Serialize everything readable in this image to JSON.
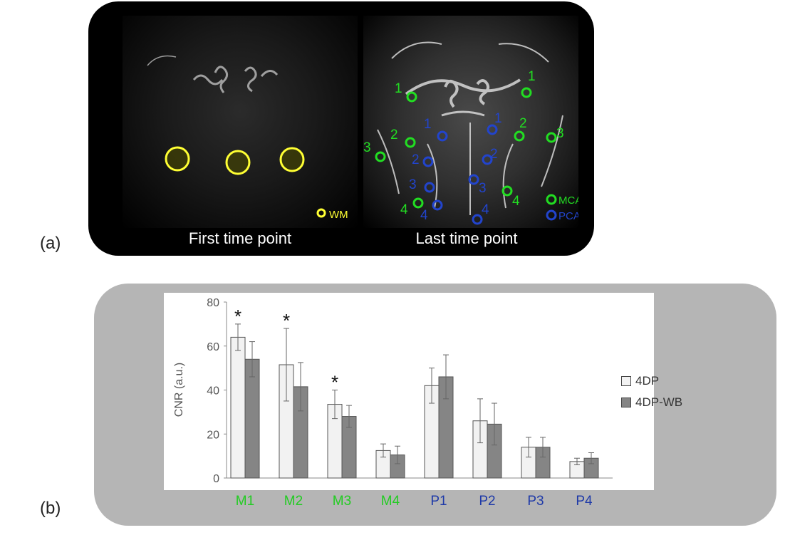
{
  "panel_a": {
    "label": "(a)",
    "left_caption": "First time point",
    "right_caption": "Last time point",
    "wm_legend": "WM",
    "mca_legend": "MCA",
    "pca_legend": "PCA",
    "colors": {
      "wm": "#ffff33",
      "mca": "#22dd22",
      "pca": "#2244cc"
    },
    "mca_roi_labels": [
      "1",
      "2",
      "3",
      "4",
      "1",
      "2",
      "3",
      "4"
    ],
    "pca_roi_labels": [
      "1",
      "2",
      "3",
      "4",
      "1",
      "2",
      "3",
      "4"
    ]
  },
  "panel_b": {
    "label": "(b)"
  },
  "chart_data": {
    "type": "bar",
    "categories": [
      "M1",
      "M2",
      "M3",
      "M4",
      "P1",
      "P2",
      "P3",
      "P4"
    ],
    "category_colors": [
      "#22cc22",
      "#22cc22",
      "#22cc22",
      "#22cc22",
      "#1f3aa8",
      "#1f3aa8",
      "#1f3aa8",
      "#1f3aa8"
    ],
    "series": [
      {
        "name": "4DP",
        "values": [
          64,
          51.5,
          33.5,
          12.5,
          42,
          26,
          14,
          7.5
        ],
        "errors": [
          6,
          16.5,
          6.5,
          3,
          8,
          10,
          4.5,
          1.5
        ],
        "color": "#f2f2f2"
      },
      {
        "name": "4DP-WB",
        "values": [
          54,
          41.5,
          28,
          10.5,
          46,
          24.5,
          14,
          9
        ],
        "errors": [
          8,
          11,
          5,
          4,
          10,
          9.5,
          4.5,
          2.5
        ],
        "color": "#858585"
      }
    ],
    "significance": [
      "*",
      "*",
      "*",
      "",
      "",
      "",
      "",
      ""
    ],
    "ylabel": "CNR (a.u.)",
    "ylim": [
      0,
      80
    ],
    "yticks": [
      "0",
      "20",
      "40",
      "60",
      "80"
    ],
    "legend_position": "right"
  }
}
